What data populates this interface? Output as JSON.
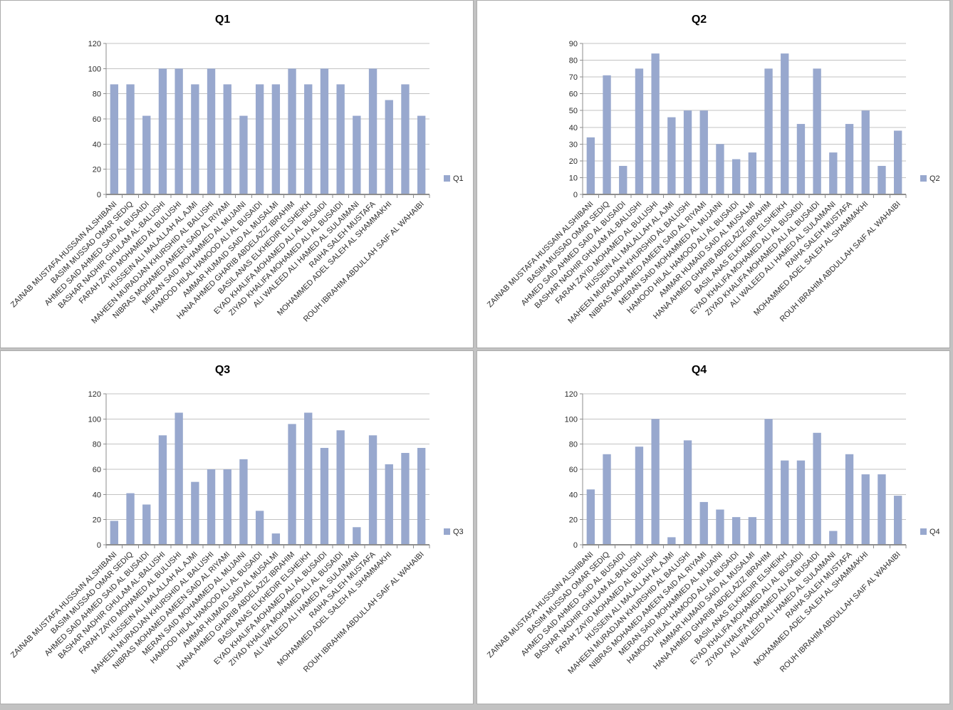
{
  "style": {
    "bar_fill": "#98a8ce",
    "grid_color": "#c3c3c3",
    "axis_color": "#8e8e8e",
    "text_color": "#2b2b2b",
    "title_color": "#000000",
    "panel_background": "#ffffff"
  },
  "categories": [
    "ZAINAB MUSTAFA HUSSAIN ALSHIBANI",
    "BASIM MUSSAD OMAR SEDIQ",
    "AHMED SAID AHMED SAID AL BUSAIDI",
    "BASHAR NADHIR GHULAM AL-BALUSHI",
    "FARAH ZAYID MOHAMED AL BULUSHI",
    "HUSSEIN ALI MALALLAH AL AJMI",
    "MAHEEN MURADJAN KHURSHID AL BALUSHI",
    "NIBRAS MOHAMED AMEEN SAID AL RIYAMI",
    "MERAN SAID MOHAMMED AL MUJAINI",
    "HAMOOD HILAL HAMOOD ALI AL BUSAIDI",
    "AMMAR HUMAID SAID AL MUSALMI",
    "HANA AHMED GHARIB ABDELAZIZ IBRAHIM",
    "BASIL ANAS ELKHEDIR ELSHEIKH",
    "EYAD KHALIFA MOHAMED ALI AL BUSAIDI",
    "ZIYAD KHALIFA MOHAMED ALI AL BUSAIDI",
    "ALI WALEED ALI HAMED AL SULAIMANI",
    "RAIHA SALEH MUSTAFA",
    "MOHAMMED ADEL SALEH AL SHAMMAKHI",
    "",
    "ROUH IBRAHIM ABDULLAH SAIF AL WAHAIBI"
  ],
  "chart_data": [
    {
      "type": "bar",
      "title": "Q1",
      "legend": "Q1",
      "xlabel": "",
      "ylabel": "",
      "ylim": [
        0,
        120
      ],
      "ystep": 20,
      "grid": true,
      "legend_position": "right",
      "categories": [
        "ZAINAB MUSTAFA HUSSAIN ALSHIBANI",
        "BASIM MUSSAD OMAR SEDIQ",
        "AHMED SAID AHMED SAID AL BUSAIDI",
        "BASHAR NADHIR GHULAM AL-BALUSHI",
        "FARAH ZAYID MOHAMED AL BULUSHI",
        "HUSSEIN ALI MALALLAH AL AJMI",
        "MAHEEN MURADJAN KHURSHID AL BALUSHI",
        "NIBRAS MOHAMED AMEEN SAID AL RIYAMI",
        "MERAN SAID MOHAMMED AL MUJAINI",
        "HAMOOD HILAL HAMOOD ALI AL BUSAIDI",
        "AMMAR HUMAID SAID AL MUSALMI",
        "HANA AHMED GHARIB ABDELAZIZ IBRAHIM",
        "BASIL ANAS ELKHEDIR ELSHEIKH",
        "EYAD KHALIFA MOHAMED ALI AL BUSAIDI",
        "ZIYAD KHALIFA MOHAMED ALI AL BUSAIDI",
        "ALI WALEED ALI HAMED AL SULAIMANI",
        "RAIHA SALEH MUSTAFA",
        "MOHAMMED ADEL SALEH AL SHAMMAKHI",
        "",
        "ROUH IBRAHIM ABDULLAH SAIF AL WAHAIBI"
      ],
      "values": [
        87.5,
        87.5,
        62.5,
        100,
        100,
        87.5,
        100,
        87.5,
        62.5,
        87.5,
        87.5,
        100,
        87.5,
        100,
        87.5,
        62.5,
        100,
        75,
        87.5,
        62.5
      ]
    },
    {
      "type": "bar",
      "title": "Q2",
      "legend": "Q2",
      "xlabel": "",
      "ylabel": "",
      "ylim": [
        0,
        90
      ],
      "ystep": 10,
      "grid": true,
      "legend_position": "right",
      "categories": [
        "ZAINAB MUSTAFA HUSSAIN ALSHIBANI",
        "BASIM MUSSAD OMAR SEDIQ",
        "AHMED SAID AHMED SAID AL BUSAIDI",
        "BASHAR NADHIR GHULAM AL-BALUSHI",
        "FARAH ZAYID MOHAMED AL BULUSHI",
        "HUSSEIN ALI MALALLAH AL AJMI",
        "MAHEEN MURADJAN KHURSHID AL BALUSHI",
        "NIBRAS MOHAMED AMEEN SAID AL RIYAMI",
        "MERAN SAID MOHAMMED AL MUJAINI",
        "HAMOOD HILAL HAMOOD ALI AL BUSAIDI",
        "AMMAR HUMAID SAID AL MUSALMI",
        "HANA AHMED GHARIB ABDELAZIZ IBRAHIM",
        "BASIL ANAS ELKHEDIR ELSHEIKH",
        "EYAD KHALIFA MOHAMED ALI AL BUSAIDI",
        "ZIYAD KHALIFA MOHAMED ALI AL BUSAIDI",
        "ALI WALEED ALI HAMED AL SULAIMANI",
        "RAIHA SALEH MUSTAFA",
        "MOHAMMED ADEL SALEH AL SHAMMAKHI",
        "",
        "ROUH IBRAHIM ABDULLAH SAIF AL WAHAIBI"
      ],
      "values": [
        34,
        71,
        17,
        75,
        84,
        46,
        50,
        50,
        30,
        21,
        25,
        75,
        84,
        42,
        75,
        25,
        42,
        50,
        17,
        38
      ]
    },
    {
      "type": "bar",
      "title": "Q3",
      "legend": "Q3",
      "xlabel": "",
      "ylabel": "",
      "ylim": [
        0,
        120
      ],
      "ystep": 20,
      "grid": true,
      "legend_position": "right",
      "categories": [
        "ZAINAB MUSTAFA HUSSAIN ALSHIBANI",
        "BASIM MUSSAD OMAR SEDIQ",
        "AHMED SAID AHMED SAID AL BUSAIDI",
        "BASHAR NADHIR GHULAM AL-BALUSHI",
        "FARAH ZAYID MOHAMED AL BULUSHI",
        "HUSSEIN ALI MALALLAH AL AJMI",
        "MAHEEN MURADJAN KHURSHID AL BALUSHI",
        "NIBRAS MOHAMED AMEEN SAID AL RIYAMI",
        "MERAN SAID MOHAMMED AL MUJAINI",
        "HAMOOD HILAL HAMOOD ALI AL BUSAIDI",
        "AMMAR HUMAID SAID AL MUSALMI",
        "HANA AHMED GHARIB ABDELAZIZ IBRAHIM",
        "BASIL ANAS ELKHEDIR ELSHEIKH",
        "EYAD KHALIFA MOHAMED ALI AL BUSAIDI",
        "ZIYAD KHALIFA MOHAMED ALI AL BUSAIDI",
        "ALI WALEED ALI HAMED AL SULAIMANI",
        "RAIHA SALEH MUSTAFA",
        "MOHAMMED ADEL SALEH AL SHAMMAKHI",
        "",
        "ROUH IBRAHIM ABDULLAH SAIF AL WAHAIBI"
      ],
      "values": [
        19,
        41,
        32,
        87,
        105,
        50,
        60,
        60,
        68,
        27,
        9,
        96,
        105,
        77,
        91,
        14,
        87,
        64,
        73,
        77
      ]
    },
    {
      "type": "bar",
      "title": "Q4",
      "legend": "Q4",
      "xlabel": "",
      "ylabel": "",
      "ylim": [
        0,
        120
      ],
      "ystep": 20,
      "grid": true,
      "legend_position": "right",
      "categories": [
        "ZAINAB MUSTAFA HUSSAIN ALSHIBANI",
        "BASIM MUSSAD OMAR SEDIQ",
        "AHMED SAID AHMED SAID AL BUSAIDI",
        "BASHAR NADHIR GHULAM AL-BALUSHI",
        "FARAH ZAYID MOHAMED AL BULUSHI",
        "HUSSEIN ALI MALALLAH AL AJMI",
        "MAHEEN MURADJAN KHURSHID AL BALUSHI",
        "NIBRAS MOHAMED AMEEN SAID AL RIYAMI",
        "MERAN SAID MOHAMMED AL MUJAINI",
        "HAMOOD HILAL HAMOOD ALI AL BUSAIDI",
        "AMMAR HUMAID SAID AL MUSALMI",
        "HANA AHMED GHARIB ABDELAZIZ IBRAHIM",
        "BASIL ANAS ELKHEDIR ELSHEIKH",
        "EYAD KHALIFA MOHAMED ALI AL BUSAIDI",
        "ZIYAD KHALIFA MOHAMED ALI AL BUSAIDI",
        "ALI WALEED ALI HAMED AL SULAIMANI",
        "RAIHA SALEH MUSTAFA",
        "MOHAMMED ADEL SALEH AL SHAMMAKHI",
        "",
        "ROUH IBRAHIM ABDULLAH SAIF AL WAHAIBI"
      ],
      "values": [
        44,
        72,
        0,
        78,
        100,
        6,
        83,
        34,
        28,
        22,
        22,
        100,
        67,
        67,
        89,
        11,
        72,
        56,
        56,
        39
      ]
    }
  ]
}
